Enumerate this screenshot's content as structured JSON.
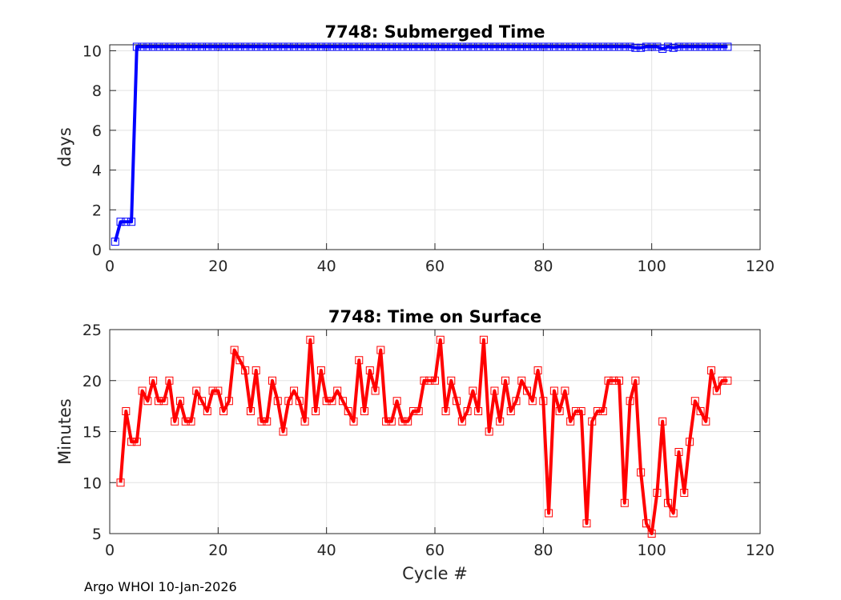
{
  "footer": "Argo WHOI 10-Jan-2026",
  "chart_data": [
    {
      "type": "line",
      "title": "7748: Submerged Time",
      "xlabel": "",
      "ylabel": "days",
      "xlim": [
        0,
        120
      ],
      "ylim": [
        0,
        10.3
      ],
      "xticks": [
        0,
        20,
        40,
        60,
        80,
        100,
        120
      ],
      "yticks": [
        0,
        2,
        4,
        6,
        8,
        10
      ],
      "grid": true,
      "marker": "square",
      "color": "#0000ff",
      "x": [
        1,
        2,
        3,
        4,
        5,
        6,
        7,
        8,
        9,
        10,
        11,
        12,
        13,
        14,
        15,
        16,
        17,
        18,
        19,
        20,
        21,
        22,
        23,
        24,
        25,
        26,
        27,
        28,
        29,
        30,
        31,
        32,
        33,
        34,
        35,
        36,
        37,
        38,
        39,
        40,
        41,
        42,
        43,
        44,
        45,
        46,
        47,
        48,
        49,
        50,
        51,
        52,
        53,
        54,
        55,
        56,
        57,
        58,
        59,
        60,
        61,
        62,
        63,
        64,
        65,
        66,
        67,
        68,
        69,
        70,
        71,
        72,
        73,
        74,
        75,
        76,
        77,
        78,
        79,
        80,
        81,
        82,
        83,
        84,
        85,
        86,
        87,
        88,
        89,
        90,
        91,
        92,
        93,
        94,
        95,
        96,
        97,
        98,
        99,
        100,
        101,
        102,
        103,
        104,
        105,
        106,
        107,
        108,
        109,
        110,
        111,
        112,
        113,
        114
      ],
      "y": [
        0.4,
        1.4,
        1.4,
        1.4,
        10.2,
        10.2,
        10.2,
        10.2,
        10.2,
        10.2,
        10.2,
        10.2,
        10.2,
        10.2,
        10.2,
        10.2,
        10.2,
        10.2,
        10.2,
        10.2,
        10.2,
        10.2,
        10.2,
        10.2,
        10.2,
        10.2,
        10.2,
        10.2,
        10.2,
        10.2,
        10.2,
        10.2,
        10.2,
        10.2,
        10.2,
        10.2,
        10.2,
        10.2,
        10.2,
        10.2,
        10.2,
        10.2,
        10.2,
        10.2,
        10.2,
        10.2,
        10.2,
        10.2,
        10.2,
        10.2,
        10.2,
        10.2,
        10.2,
        10.2,
        10.2,
        10.2,
        10.2,
        10.2,
        10.2,
        10.2,
        10.2,
        10.2,
        10.2,
        10.2,
        10.2,
        10.2,
        10.2,
        10.2,
        10.2,
        10.2,
        10.2,
        10.2,
        10.2,
        10.2,
        10.2,
        10.2,
        10.2,
        10.2,
        10.2,
        10.2,
        10.2,
        10.2,
        10.2,
        10.2,
        10.2,
        10.2,
        10.2,
        10.2,
        10.2,
        10.2,
        10.2,
        10.2,
        10.2,
        10.2,
        10.2,
        10.2,
        10.15,
        10.15,
        10.2,
        10.2,
        10.2,
        10.1,
        10.2,
        10.15,
        10.2,
        10.2,
        10.2,
        10.2,
        10.2,
        10.2,
        10.2,
        10.2,
        10.2,
        10.2
      ]
    },
    {
      "type": "line",
      "title": "7748: Time on Surface",
      "xlabel": "Cycle #",
      "ylabel": "Minutes",
      "xlim": [
        0,
        120
      ],
      "ylim": [
        5,
        25
      ],
      "xticks": [
        0,
        20,
        40,
        60,
        80,
        100,
        120
      ],
      "yticks": [
        5,
        10,
        15,
        20,
        25
      ],
      "grid": true,
      "marker": "square",
      "color": "#ff0000",
      "x": [
        2,
        3,
        4,
        5,
        6,
        7,
        8,
        9,
        10,
        11,
        12,
        13,
        14,
        15,
        16,
        17,
        18,
        19,
        20,
        21,
        22,
        23,
        24,
        25,
        26,
        27,
        28,
        29,
        30,
        31,
        32,
        33,
        34,
        35,
        36,
        37,
        38,
        39,
        40,
        41,
        42,
        43,
        44,
        45,
        46,
        47,
        48,
        49,
        50,
        51,
        52,
        53,
        54,
        55,
        56,
        57,
        58,
        59,
        60,
        61,
        62,
        63,
        64,
        65,
        66,
        67,
        68,
        69,
        70,
        71,
        72,
        73,
        74,
        75,
        76,
        77,
        78,
        79,
        80,
        81,
        82,
        83,
        84,
        85,
        86,
        87,
        88,
        89,
        90,
        91,
        92,
        93,
        94,
        95,
        96,
        97,
        98,
        99,
        100,
        101,
        102,
        103,
        104,
        105,
        106,
        107,
        108,
        109,
        110,
        111,
        112,
        113,
        114
      ],
      "y": [
        10,
        17,
        14,
        14,
        19,
        18,
        20,
        18,
        18,
        20,
        16,
        18,
        16,
        16,
        19,
        18,
        17,
        19,
        19,
        17,
        18,
        23,
        22,
        21,
        17,
        21,
        16,
        16,
        20,
        18,
        15,
        18,
        19,
        18,
        16,
        24,
        17,
        21,
        18,
        18,
        19,
        18,
        17,
        16,
        22,
        17,
        21,
        19,
        23,
        16,
        16,
        18,
        16,
        16,
        17,
        17,
        20,
        20,
        20,
        24,
        17,
        20,
        18,
        16,
        17,
        19,
        17,
        24,
        15,
        19,
        16,
        20,
        17,
        18,
        20,
        19,
        18,
        21,
        18,
        7,
        19,
        17,
        19,
        16,
        17,
        17,
        6,
        16,
        17,
        17,
        20,
        20,
        20,
        8,
        18,
        20,
        11,
        6,
        5,
        9,
        16,
        8,
        7,
        13,
        9,
        14,
        18,
        17,
        16,
        21,
        19,
        20,
        20
      ]
    }
  ]
}
